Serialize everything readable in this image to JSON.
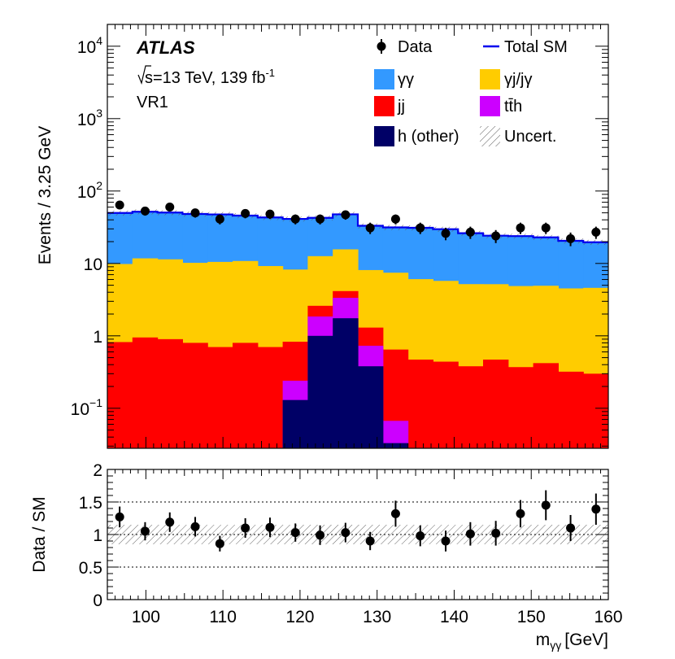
{
  "chart_data": {
    "type": "stacked-histogram",
    "experiment": "ATLAS",
    "energy_text": "=13 TeV, 139 fb",
    "energy_prefix": "s",
    "lumi_exponent": "-1",
    "region": "VR1",
    "ylabel": "Events / 3.25 GeV",
    "xlabel": "m",
    "xlabel_sub": "γγ",
    "xlabel_unit": "[GeV]",
    "ratio_ylabel": "Data / SM",
    "xlim": [
      95,
      160
    ],
    "ylim": [
      0.028,
      20000
    ],
    "ratio_ylim": [
      0,
      2
    ],
    "x_ticks": [
      "100",
      "110",
      "120",
      "130",
      "140",
      "150",
      "160"
    ],
    "x_tick_values": [
      100,
      110,
      120,
      130,
      140,
      150,
      160
    ],
    "y_ticks": [
      {
        "value": 0.1,
        "base": "10",
        "exp": "−1"
      },
      {
        "value": 1,
        "base": "1",
        "exp": ""
      },
      {
        "value": 10,
        "base": "10",
        "exp": ""
      },
      {
        "value": 100,
        "base": "10",
        "exp": "2"
      },
      {
        "value": 1000,
        "base": "10",
        "exp": "3"
      },
      {
        "value": 10000,
        "base": "10",
        "exp": "4"
      }
    ],
    "ratio_y_ticks": [
      "0",
      "0.5",
      "1",
      "1.5",
      "2"
    ],
    "ratio_y_tick_values": [
      0,
      0.5,
      1,
      1.5,
      2
    ],
    "bin_edges": [
      95.0,
      98.25,
      101.5,
      104.75,
      108.0,
      111.25,
      114.5,
      117.75,
      121.0,
      124.25,
      127.5,
      130.75,
      134.0,
      137.25,
      140.5,
      143.75,
      147.0,
      150.25,
      153.5,
      156.75,
      160.0
    ],
    "stack_order": [
      "h_other",
      "tth",
      "jj",
      "gj",
      "gg"
    ],
    "legend": {
      "data": "Data",
      "total": "Total SM",
      "gg": "γγ",
      "gj": "γj/jγ",
      "jj": "jj",
      "tth": "tt̄h",
      "h_other": "h (other)",
      "uncert": "Uncert."
    },
    "colors": {
      "gg": "#3399ff",
      "gj": "#ffcc00",
      "jj": "#ff0000",
      "tth": "#cc00ff",
      "h_other": "#000066",
      "total": "#0000ee"
    },
    "series": {
      "h_other": [
        0,
        0,
        0,
        0,
        0,
        0,
        0,
        0.13,
        1.0,
        1.75,
        0.38,
        0.033,
        0,
        0,
        0,
        0,
        0,
        0,
        0,
        0
      ],
      "tth": [
        0,
        0,
        0,
        0,
        0,
        0,
        0,
        0.11,
        0.85,
        1.6,
        0.35,
        0.034,
        0,
        0,
        0,
        0,
        0,
        0,
        0,
        0
      ],
      "jj": [
        0.82,
        0.95,
        0.9,
        0.8,
        0.7,
        0.8,
        0.7,
        0.59,
        0.75,
        0.8,
        0.57,
        0.58,
        0.47,
        0.44,
        0.38,
        0.47,
        0.37,
        0.42,
        0.32,
        0.3
      ],
      "gj": [
        9.0,
        10.8,
        10.5,
        9.4,
        9.8,
        10.0,
        8.5,
        7.4,
        10.0,
        11.5,
        6.8,
        6.8,
        5.6,
        5.3,
        4.8,
        4.7,
        4.5,
        4.5,
        4.2,
        4.3
      ],
      "gg": [
        40,
        40,
        39,
        38,
        37,
        35,
        34,
        33,
        30,
        32,
        25,
        24,
        25,
        24,
        21,
        19,
        19,
        18,
        16,
        15
      ]
    },
    "data_x": [
      96.6,
      99.9,
      103.1,
      106.4,
      109.6,
      112.9,
      116.1,
      119.4,
      122.6,
      125.9,
      129.1,
      132.4,
      135.6,
      138.9,
      142.1,
      145.4,
      148.6,
      151.9,
      155.1,
      158.4
    ],
    "data_y": [
      64,
      53,
      60,
      50,
      41,
      49,
      48,
      41,
      41,
      47,
      31,
      41,
      31,
      26,
      27,
      24,
      31,
      31,
      22,
      27
    ],
    "ratio_values": [
      1.27,
      1.05,
      1.19,
      1.12,
      0.86,
      1.1,
      1.11,
      1.03,
      0.99,
      1.03,
      0.9,
      1.32,
      0.98,
      0.9,
      1.01,
      1.02,
      1.32,
      1.45,
      1.1,
      1.39
    ],
    "ratio_errors": [
      0.16,
      0.14,
      0.15,
      0.15,
      0.12,
      0.15,
      0.15,
      0.14,
      0.15,
      0.15,
      0.14,
      0.2,
      0.16,
      0.16,
      0.18,
      0.19,
      0.21,
      0.23,
      0.2,
      0.24
    ],
    "uncert_band_fraction": 0.08,
    "ratio_band": [
      0.85,
      1.15
    ],
    "ratio_gridlines": [
      0.5,
      1,
      1.5
    ]
  }
}
